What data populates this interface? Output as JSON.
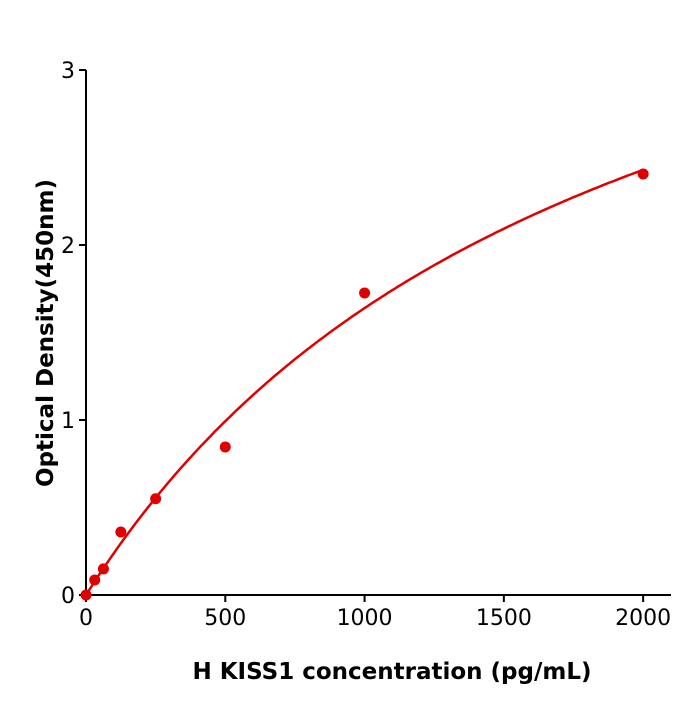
{
  "chart_data": {
    "type": "scatter",
    "title": "",
    "xlabel": "H  KISS1 concentration (pg/mL)",
    "ylabel": "Optical Density(450nm)",
    "xlim": [
      0,
      2100
    ],
    "ylim": [
      0,
      3
    ],
    "xticks": [
      "0",
      "500",
      "1000",
      "1500",
      "2000"
    ],
    "yticks": [
      "0",
      "1",
      "2",
      "3"
    ],
    "grid": false,
    "color": "#e00000",
    "points": {
      "x": [
        0,
        31.25,
        62.5,
        125,
        250,
        500,
        1000,
        2000
      ],
      "y": [
        0.0,
        0.086,
        0.149,
        0.36,
        0.55,
        0.846,
        1.726,
        2.406
      ]
    },
    "fit_line": true
  }
}
